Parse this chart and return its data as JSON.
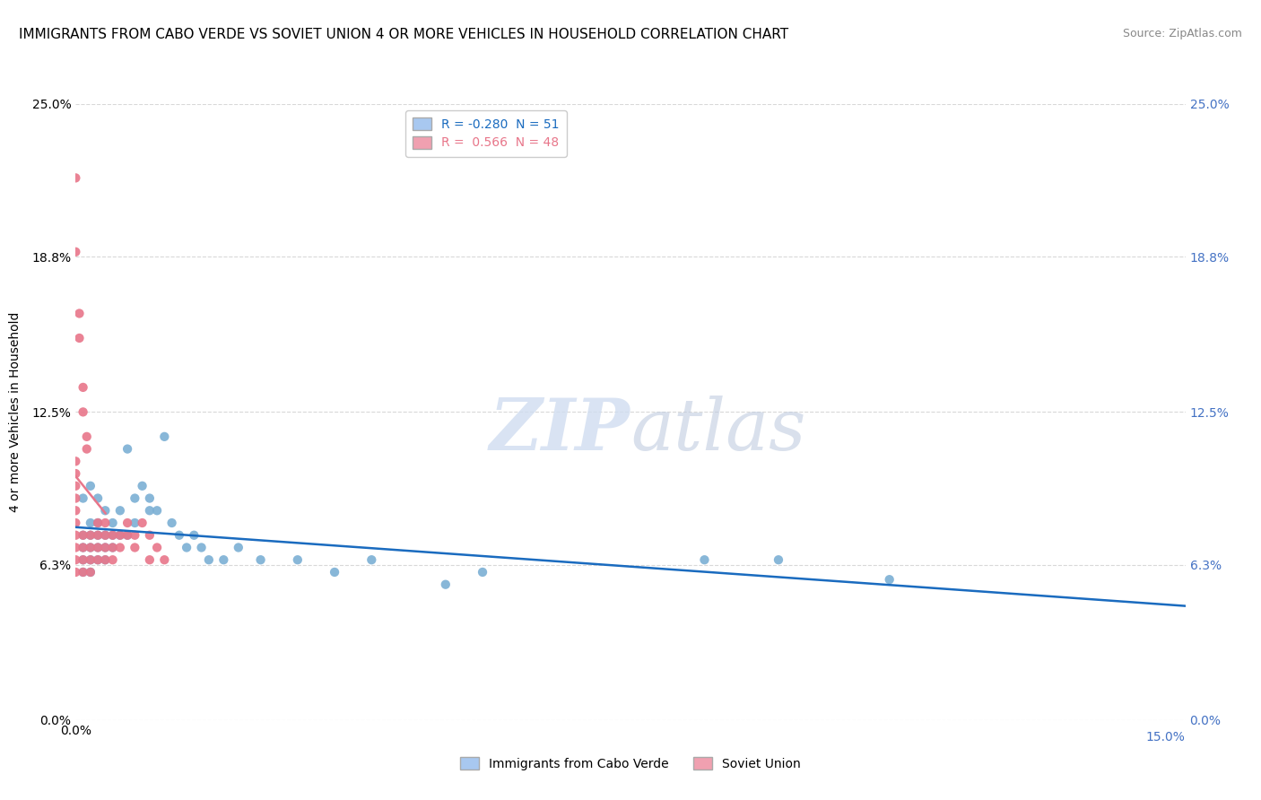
{
  "title": "IMMIGRANTS FROM CABO VERDE VS SOVIET UNION 4 OR MORE VEHICLES IN HOUSEHOLD CORRELATION CHART",
  "source": "Source: ZipAtlas.com",
  "ylabel": "4 or more Vehicles in Household",
  "xlim": [
    0.0,
    0.15
  ],
  "ylim": [
    0.0,
    0.25
  ],
  "xtick_labels": [
    "0.0%",
    "15.0%"
  ],
  "ytick_labels": [
    "0.0%",
    "6.3%",
    "12.5%",
    "18.8%",
    "25.0%"
  ],
  "ytick_values": [
    0.0,
    0.063,
    0.125,
    0.188,
    0.25
  ],
  "legend_entries": [
    {
      "label": "R = -0.280  N = 51",
      "color": "#a8c8f0"
    },
    {
      "label": "R =  0.566  N = 48",
      "color": "#f0a0b0"
    }
  ],
  "legend_names": [
    "Immigrants from Cabo Verde",
    "Soviet Union"
  ],
  "cabo_verde_color": "#7bafd4",
  "soviet_color": "#e8768a",
  "cabo_verde_line_color": "#1a6bbf",
  "soviet_line_color": "#e8768a",
  "cabo_verde_points": [
    [
      0.001,
      0.09
    ],
    [
      0.001,
      0.075
    ],
    [
      0.001,
      0.07
    ],
    [
      0.001,
      0.065
    ],
    [
      0.001,
      0.06
    ],
    [
      0.002,
      0.095
    ],
    [
      0.002,
      0.08
    ],
    [
      0.002,
      0.075
    ],
    [
      0.002,
      0.07
    ],
    [
      0.002,
      0.065
    ],
    [
      0.002,
      0.06
    ],
    [
      0.003,
      0.09
    ],
    [
      0.003,
      0.08
    ],
    [
      0.003,
      0.075
    ],
    [
      0.003,
      0.07
    ],
    [
      0.003,
      0.065
    ],
    [
      0.004,
      0.085
    ],
    [
      0.004,
      0.075
    ],
    [
      0.004,
      0.07
    ],
    [
      0.004,
      0.065
    ],
    [
      0.005,
      0.08
    ],
    [
      0.005,
      0.075
    ],
    [
      0.005,
      0.07
    ],
    [
      0.006,
      0.085
    ],
    [
      0.006,
      0.075
    ],
    [
      0.007,
      0.11
    ],
    [
      0.007,
      0.075
    ],
    [
      0.008,
      0.09
    ],
    [
      0.008,
      0.08
    ],
    [
      0.009,
      0.095
    ],
    [
      0.01,
      0.09
    ],
    [
      0.01,
      0.085
    ],
    [
      0.011,
      0.085
    ],
    [
      0.012,
      0.115
    ],
    [
      0.013,
      0.08
    ],
    [
      0.014,
      0.075
    ],
    [
      0.015,
      0.07
    ],
    [
      0.016,
      0.075
    ],
    [
      0.017,
      0.07
    ],
    [
      0.018,
      0.065
    ],
    [
      0.02,
      0.065
    ],
    [
      0.022,
      0.07
    ],
    [
      0.025,
      0.065
    ],
    [
      0.03,
      0.065
    ],
    [
      0.035,
      0.06
    ],
    [
      0.04,
      0.065
    ],
    [
      0.05,
      0.055
    ],
    [
      0.055,
      0.06
    ],
    [
      0.085,
      0.065
    ],
    [
      0.095,
      0.065
    ],
    [
      0.11,
      0.057
    ]
  ],
  "soviet_points": [
    [
      0.0,
      0.22
    ],
    [
      0.0,
      0.19
    ],
    [
      0.0005,
      0.165
    ],
    [
      0.0005,
      0.155
    ],
    [
      0.001,
      0.135
    ],
    [
      0.001,
      0.125
    ],
    [
      0.0015,
      0.115
    ],
    [
      0.0015,
      0.11
    ],
    [
      0.0,
      0.105
    ],
    [
      0.0,
      0.1
    ],
    [
      0.0,
      0.095
    ],
    [
      0.0,
      0.09
    ],
    [
      0.0,
      0.085
    ],
    [
      0.0,
      0.08
    ],
    [
      0.001,
      0.075
    ],
    [
      0.0,
      0.075
    ],
    [
      0.001,
      0.07
    ],
    [
      0.0,
      0.07
    ],
    [
      0.001,
      0.065
    ],
    [
      0.0,
      0.065
    ],
    [
      0.0,
      0.06
    ],
    [
      0.001,
      0.06
    ],
    [
      0.002,
      0.075
    ],
    [
      0.002,
      0.07
    ],
    [
      0.002,
      0.065
    ],
    [
      0.002,
      0.06
    ],
    [
      0.003,
      0.08
    ],
    [
      0.003,
      0.075
    ],
    [
      0.003,
      0.07
    ],
    [
      0.003,
      0.065
    ],
    [
      0.004,
      0.08
    ],
    [
      0.004,
      0.075
    ],
    [
      0.004,
      0.07
    ],
    [
      0.004,
      0.065
    ],
    [
      0.005,
      0.075
    ],
    [
      0.005,
      0.07
    ],
    [
      0.005,
      0.065
    ],
    [
      0.006,
      0.075
    ],
    [
      0.006,
      0.07
    ],
    [
      0.007,
      0.08
    ],
    [
      0.007,
      0.075
    ],
    [
      0.008,
      0.075
    ],
    [
      0.008,
      0.07
    ],
    [
      0.009,
      0.08
    ],
    [
      0.01,
      0.075
    ],
    [
      0.01,
      0.065
    ],
    [
      0.011,
      0.07
    ],
    [
      0.012,
      0.065
    ]
  ],
  "grid_color": "#d8d8d8",
  "grid_style": "--",
  "background_color": "#ffffff",
  "title_fontsize": 11,
  "axis_label_fontsize": 10,
  "tick_fontsize": 10,
  "legend_fontsize": 10
}
